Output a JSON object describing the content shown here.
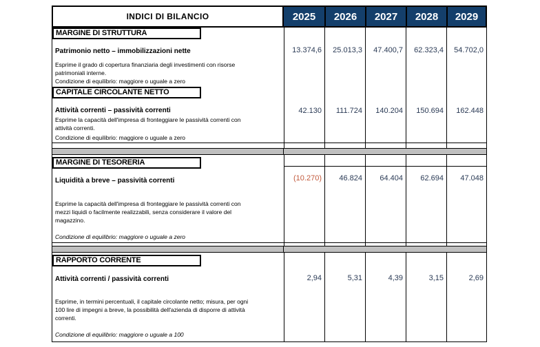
{
  "colors": {
    "header_bg": "#143F6B",
    "separator": "#BFBFBF",
    "negative": "#C25A3C",
    "value_color": "#2A3A55"
  },
  "header": {
    "title": "INDICI DI BILANCIO",
    "years": [
      "2025",
      "2026",
      "2027",
      "2028",
      "2029"
    ]
  },
  "sections": [
    {
      "title": "MARGINE DI STRUTTURA",
      "metric": "Patrimonio netto – immobilizzazioni nette",
      "values": [
        "13.374,6",
        "25.013,3",
        "47.400,7",
        "62.323,4",
        "54.702,0"
      ],
      "desc_lines": [
        "Esprime il grado di copertura finanziaria degli investimenti con risorse",
        "patrimoniali interne."
      ],
      "condition": "Condizione di equilibrio: maggiore o uguale a zero"
    },
    {
      "title": "CAPITALE CIRCOLANTE NETTO",
      "metric": "Attività correnti – passività correnti",
      "values": [
        "42.130",
        "111.724",
        "140.204",
        "150.694",
        "162.448"
      ],
      "desc_lines": [
        "Esprime la capacità dell'impresa di fronteggiare le passività correnti con",
        "attività correnti."
      ],
      "condition": "Condizione di equilibrio: maggiore o uguale a zero"
    },
    {
      "title": "MARGINE DI TESORERIA",
      "metric": "Liquidità a breve – passività correnti",
      "values": [
        "(10.270)",
        "46.824",
        "64.404",
        "62.694",
        "47.048"
      ],
      "desc_lines": [
        "Esprime la capacità dell'impresa di fronteggiare le passività correnti con",
        "mezzi liquidi  o facilmente realizzabili, senza considerare il valore del",
        "magazzino."
      ],
      "condition": "Condizione di equilibrio: maggiore o uguale a zero"
    },
    {
      "title": "RAPPORTO CORRENTE",
      "metric": "Attività correnti / passività correnti",
      "values": [
        "2,94",
        "5,31",
        "4,39",
        "3,15",
        "2,69"
      ],
      "desc_lines": [
        "Esprime, in termini percentuali, il capitale circolante netto; misura, per ogni",
        "100 lire di impegni a breve, la possibilità dell'azienda di disporre di attività",
        "correnti."
      ],
      "condition": "Condizione di equilibrio: maggiore o uguale a 100"
    }
  ]
}
